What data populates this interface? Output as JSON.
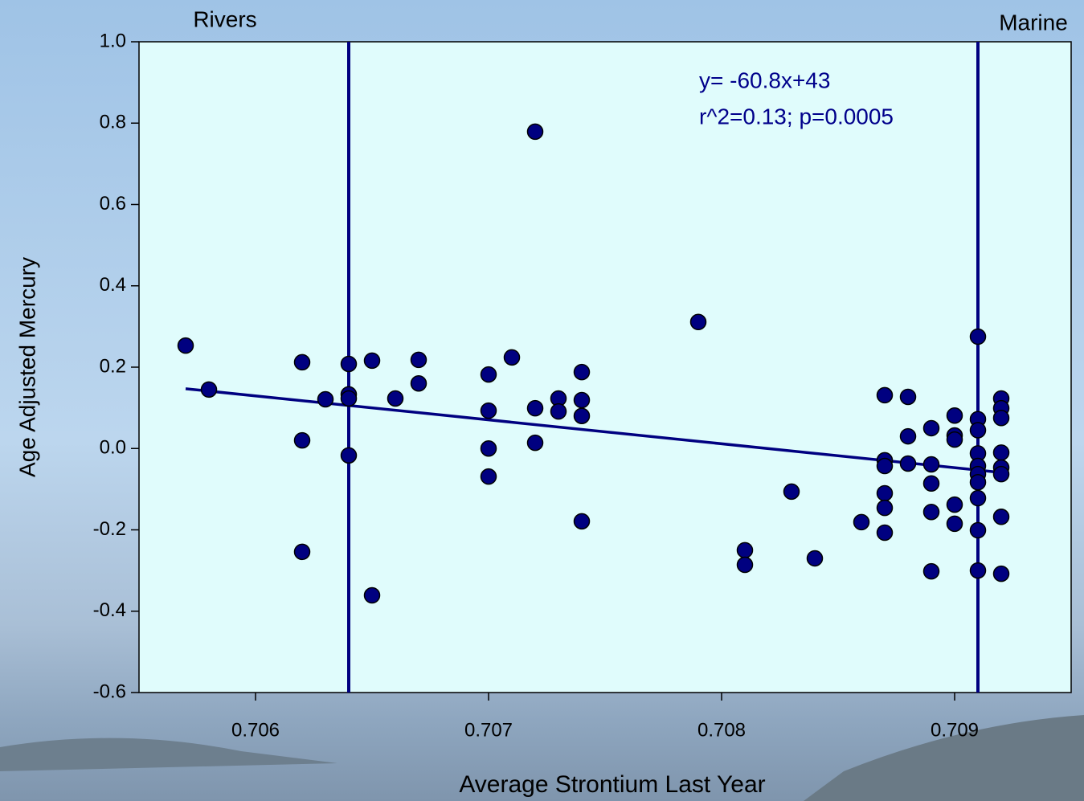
{
  "chart_data": {
    "type": "scatter",
    "xlabel": "Average Strontium Last Year",
    "ylabel": "Age Adjusted Mercury",
    "annotations": [
      "y= -60.8x+43",
      "r^2=0.13; p=0.0005"
    ],
    "region_labels": [
      "Rivers",
      "Marine"
    ],
    "color": "#000080",
    "plot_background": "#e0fcfc",
    "xlim": [
      0.7055,
      0.7095
    ],
    "ylim": [
      -0.6,
      1.0
    ],
    "xticks": [
      0.706,
      0.707,
      0.708,
      0.709
    ],
    "yticks": [
      {
        "value": -0.6,
        "label": "-0.6"
      },
      {
        "value": -0.4,
        "label": "-0.4"
      },
      {
        "value": -0.2,
        "label": "-0.2"
      },
      {
        "value": 0,
        "label": "0.0"
      },
      0.2,
      0.4,
      0.6,
      0.8,
      {
        "value": 1,
        "label": "1.0"
      }
    ],
    "x": [
      0.7057,
      0.7058,
      0.7062,
      0.7062,
      0.7062,
      0.7063,
      0.7064,
      0.7064,
      0.7064,
      0.7064,
      0.7065,
      0.7065,
      0.7066,
      0.7067,
      0.7067,
      0.707,
      0.707,
      0.707,
      0.707,
      0.7071,
      0.7072,
      0.7072,
      0.7072,
      0.7073,
      0.7073,
      0.7074,
      0.7074,
      0.7074,
      0.7074,
      0.7079,
      0.7081,
      0.7081,
      0.7083,
      0.7084,
      0.7086,
      0.7087,
      0.7087,
      0.7087,
      0.7087,
      0.7087,
      0.7087,
      0.7088,
      0.7088,
      0.7088,
      0.7089,
      0.7089,
      0.7089,
      0.7089,
      0.7089,
      0.709,
      0.709,
      0.709,
      0.709,
      0.709,
      0.7091,
      0.7091,
      0.7091,
      0.7091,
      0.7091,
      0.7091,
      0.7091,
      0.7091,
      0.7091,
      0.7091,
      0.7092,
      0.7092,
      0.7092,
      0.7092,
      0.7092,
      0.7092,
      0.7092,
      0.7092
    ],
    "values": [
      0.253,
      0.145,
      0.212,
      0.02,
      -0.254,
      0.121,
      0.208,
      0.133,
      0.123,
      -0.017,
      0.216,
      -0.361,
      0.123,
      0.218,
      0.16,
      0.182,
      0.093,
      0,
      -0.069,
      0.224,
      0.779,
      0.099,
      0.014,
      0.123,
      0.091,
      0.188,
      0.119,
      0.08,
      -0.179,
      0.311,
      -0.25,
      -0.286,
      -0.106,
      -0.27,
      -0.181,
      0.131,
      -0.029,
      -0.043,
      -0.11,
      -0.146,
      -0.207,
      0.127,
      0.03,
      -0.037,
      0.05,
      -0.039,
      -0.086,
      -0.156,
      -0.302,
      0.081,
      0.032,
      0.022,
      -0.138,
      -0.185,
      0.275,
      0.072,
      0.045,
      -0.012,
      -0.043,
      -0.063,
      -0.083,
      -0.122,
      -0.201,
      -0.3,
      0.123,
      0.099,
      0.075,
      -0.01,
      -0.047,
      -0.063,
      -0.168,
      -0.308
    ],
    "fit_line": {
      "x": [
        0.7057,
        0.7092
      ],
      "y": [
        0.147,
        -0.059
      ]
    },
    "vlines": [
      0.7064,
      0.7091
    ]
  }
}
